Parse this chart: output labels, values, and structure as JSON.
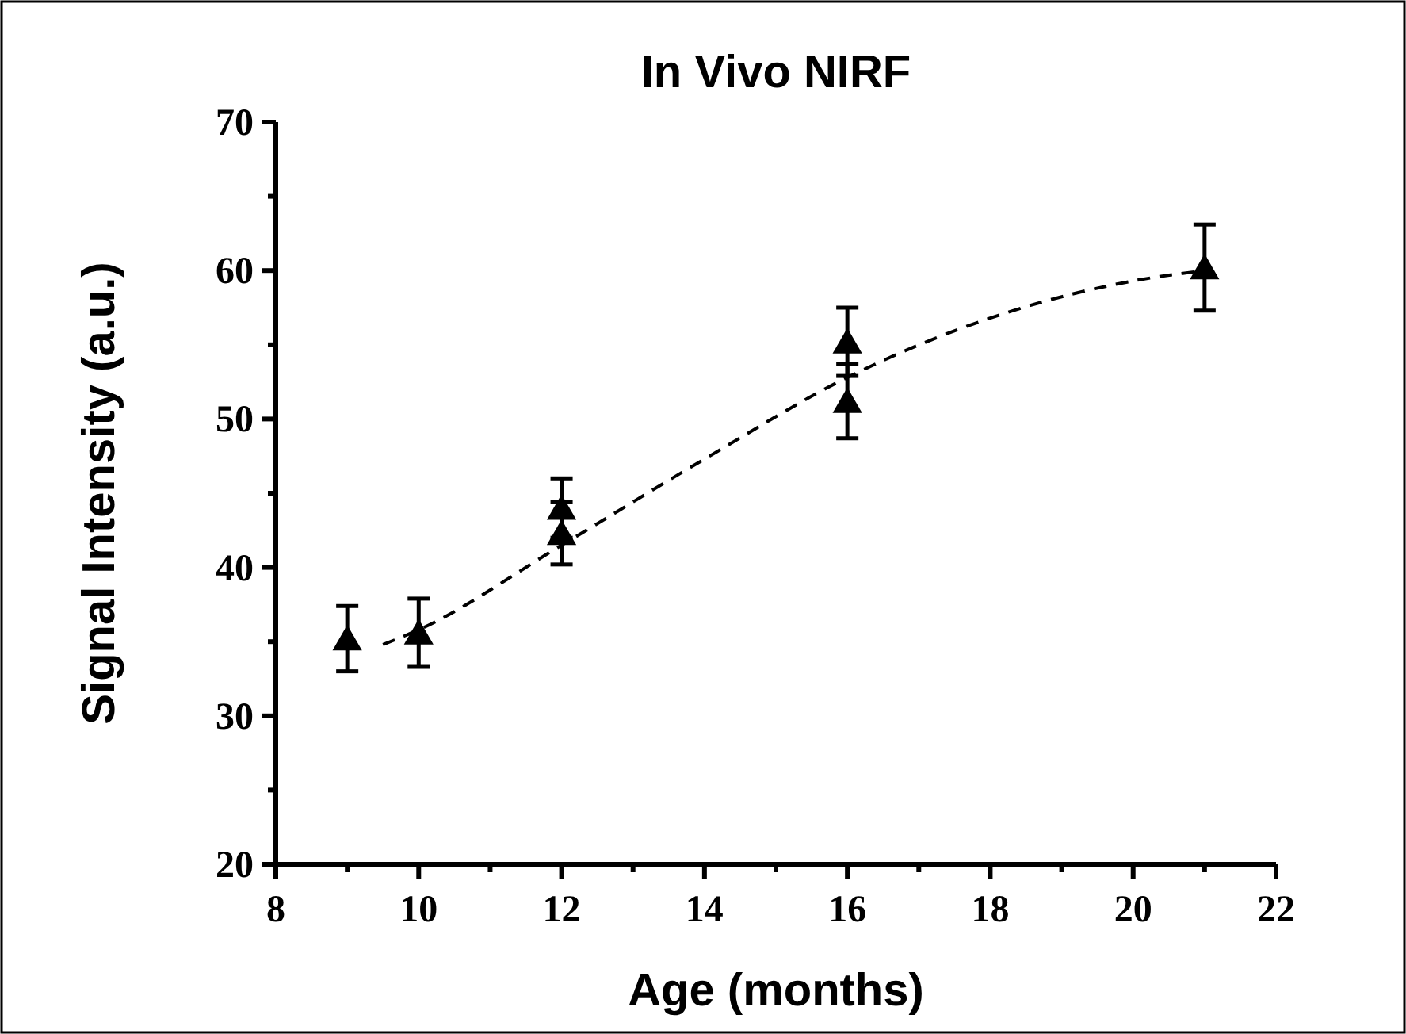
{
  "chart_data": {
    "type": "scatter",
    "title": "In Vivo NIRF",
    "xlabel": "Age (months)",
    "ylabel": "Signal Intensity (a.u.)",
    "xlim": [
      8,
      22
    ],
    "xticks": [
      8,
      10,
      12,
      14,
      16,
      18,
      20,
      22
    ],
    "ylim": [
      20,
      70
    ],
    "yticks": [
      20,
      30,
      40,
      50,
      60,
      70
    ],
    "grid": false,
    "marker": "triangle",
    "series": [
      {
        "color": "#000000",
        "x": [
          9,
          10,
          12,
          12,
          16,
          16,
          21
        ],
        "values": [
          35.2,
          35.6,
          44.0,
          42.3,
          55.2,
          51.2,
          60.2
        ],
        "errors": [
          2.2,
          2.3,
          2.0,
          2.1,
          2.3,
          2.5,
          2.9
        ]
      },
      {
        "type": "line",
        "color": "#000000",
        "marker": "none",
        "line_style": "dashed",
        "x": [
          9.5,
          10,
          12,
          14,
          16,
          18,
          20,
          21
        ],
        "values": [
          34.8,
          35.8,
          41.5,
          47.3,
          52.8,
          56.8,
          59.3,
          60.0
        ]
      }
    ]
  }
}
